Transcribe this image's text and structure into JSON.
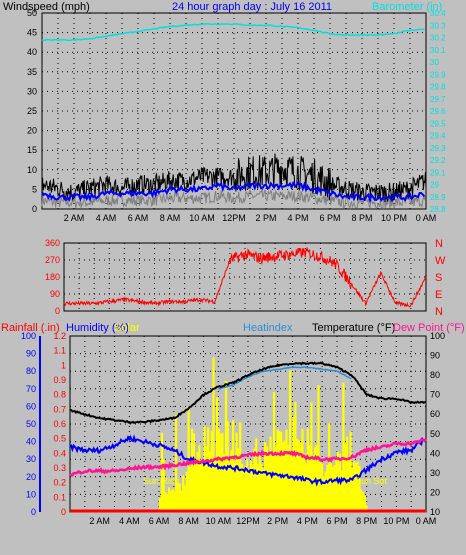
{
  "header": {
    "left_label": "Windspeed (mph)",
    "title": "24 hour graph day : July 16 2011",
    "right_label": "Barometer (in)"
  },
  "colors": {
    "background": "#c0c0c0",
    "plot_area": "#c0c0c0",
    "windspeed": "#000000",
    "wind_avg": "#0000ff",
    "wind_gust_gray": "#808080",
    "barometer": "#00e0e0",
    "direction": "#ff0000",
    "temperature": "#000000",
    "heatindex": "#2a8fd6",
    "humidity": "#0000ff",
    "dewpoint": "#ff1493",
    "solar": "#ffff00",
    "rain": "#ff0000",
    "sun_label": "#ffff00"
  },
  "chart_data": [
    {
      "id": "wind",
      "type": "line",
      "x_tick_labels": [
        "2 AM",
        "4 AM",
        "6 AM",
        "8 AM",
        "10 AM",
        "12PM",
        "2 PM",
        "4 PM",
        "6 PM",
        "8 PM",
        "10 PM",
        "0 AM"
      ],
      "y_left_ticks": [
        "0",
        "5",
        "10",
        "15",
        "20",
        "25",
        "30",
        "35",
        "40",
        "45",
        "50"
      ],
      "y_left_range": [
        0,
        50
      ],
      "y_right_ticks": [
        "28.8",
        "28.9",
        "29",
        "29.1",
        "29.2",
        "29.3",
        "29.4",
        "29.5",
        "29.6",
        "29.7",
        "29.8",
        "29.9",
        "30",
        "30.1",
        "30.2",
        "30.3",
        "30.4"
      ],
      "y_right_range": [
        28.8,
        30.4
      ],
      "x_hours": [
        0,
        1,
        2,
        3,
        4,
        5,
        6,
        7,
        8,
        9,
        10,
        11,
        12,
        13,
        14,
        15,
        16,
        17,
        18,
        19,
        20,
        21,
        22,
        23,
        24
      ],
      "series": [
        {
          "name": "Windspeed (mph)",
          "axis": "left",
          "values": [
            6,
            5,
            4,
            5,
            6,
            5,
            6,
            6,
            7,
            7,
            8,
            8,
            8,
            9,
            9,
            10,
            9,
            8,
            6,
            5,
            4,
            4,
            4,
            5,
            7
          ]
        },
        {
          "name": "",
          "axis": "left",
          "values": [
            4,
            3,
            3,
            3,
            4,
            4,
            4,
            4,
            5,
            5,
            5,
            6,
            5,
            6,
            6,
            6,
            6,
            5,
            4,
            3,
            3,
            3,
            3,
            3,
            4
          ]
        },
        {
          "name": "Barometer (in)",
          "axis": "right",
          "values": [
            30.18,
            30.18,
            30.18,
            30.19,
            30.21,
            30.23,
            30.25,
            30.27,
            30.29,
            30.3,
            30.31,
            30.31,
            30.31,
            30.3,
            30.3,
            30.29,
            30.28,
            30.26,
            30.23,
            30.22,
            30.22,
            30.22,
            30.23,
            30.26,
            30.27
          ]
        }
      ]
    },
    {
      "id": "direction",
      "type": "line",
      "y_left_ticks": [
        "0",
        "90",
        "180",
        "270",
        "360"
      ],
      "y_left_range": [
        0,
        360
      ],
      "y_right_ticks": [
        "N",
        "E",
        "S",
        "W",
        "N"
      ],
      "x_hours": [
        0,
        1,
        2,
        3,
        4,
        5,
        6,
        7,
        8,
        9,
        10,
        11,
        12,
        13,
        14,
        15,
        16,
        17,
        18,
        19,
        20,
        21,
        22,
        23,
        24
      ],
      "series": [
        {
          "name": "Wind direction",
          "values": [
            40,
            40,
            40,
            50,
            60,
            50,
            40,
            50,
            50,
            60,
            50,
            270,
            300,
            280,
            290,
            300,
            310,
            290,
            250,
            150,
            40,
            200,
            40,
            30,
            180
          ]
        }
      ]
    },
    {
      "id": "temp",
      "type": "line",
      "labels": {
        "rain": "Rainfall (.in)",
        "humidity": "Humidity (%)",
        "solar": "Solar",
        "heatindex": "Heatindex",
        "temperature": "Temperature (°F)",
        "dewpoint": "Dew Point (°F)",
        "sunrise": "Sun Rise",
        "sunset": "Sun Set"
      },
      "x_tick_labels": [
        "2 AM",
        "4 AM",
        "6 AM",
        "8 AM",
        "10 AM",
        "12PM",
        "2 PM",
        "4 PM",
        "6 PM",
        "8 PM",
        "10 PM",
        "0 AM"
      ],
      "y_rain_ticks": [
        "0",
        "0.1",
        "0.2",
        "0.3",
        "0.4",
        "0.5",
        "0.6",
        "0.7",
        "0.8",
        "0.9",
        "1",
        "1.1",
        "1.2"
      ],
      "y_rain_range": [
        0,
        1.2
      ],
      "y_humidity_ticks": [
        "0",
        "10",
        "20",
        "30",
        "40",
        "50",
        "60",
        "70",
        "80",
        "90",
        "100"
      ],
      "y_humidity_range": [
        0,
        100
      ],
      "y_temp_ticks": [
        "10",
        "20",
        "30",
        "40",
        "50",
        "60",
        "70",
        "80",
        "90",
        "100"
      ],
      "y_temp_range": [
        10,
        100
      ],
      "x_hours": [
        0,
        1,
        2,
        3,
        4,
        5,
        6,
        7,
        8,
        9,
        10,
        11,
        12,
        13,
        14,
        15,
        16,
        17,
        18,
        19,
        20,
        21,
        22,
        23,
        24
      ],
      "series": [
        {
          "name": "Temperature (°F)",
          "axis": "temp",
          "values": [
            62,
            60,
            58,
            57,
            56,
            56,
            57,
            58,
            63,
            70,
            74,
            76,
            80,
            83,
            85,
            86,
            86,
            86,
            84,
            80,
            70,
            68,
            68,
            66,
            66
          ]
        },
        {
          "name": "Heatindex",
          "axis": "temp",
          "values": [
            null,
            null,
            null,
            null,
            null,
            null,
            null,
            null,
            null,
            null,
            73,
            75,
            79,
            82,
            83,
            84,
            84,
            83,
            82,
            78,
            null,
            null,
            null,
            null,
            null
          ]
        },
        {
          "name": "Humidity (%)",
          "axis": "humidity",
          "values": [
            37,
            35,
            35,
            38,
            42,
            40,
            38,
            35,
            30,
            28,
            26,
            25,
            24,
            22,
            21,
            20,
            18,
            17,
            18,
            18,
            24,
            30,
            34,
            35,
            42
          ]
        },
        {
          "name": "Dew Point (°F)",
          "axis": "temp",
          "values": [
            29,
            31,
            31,
            31,
            32,
            33,
            33,
            34,
            35,
            36,
            37,
            38,
            39,
            40,
            40,
            40,
            38,
            37,
            37,
            38,
            42,
            43,
            45,
            45,
            47
          ]
        },
        {
          "name": "Solar",
          "axis": "rain",
          "values": [
            0,
            0,
            0,
            0,
            0,
            0,
            0.12,
            0.2,
            0.28,
            0.5,
            0.58,
            0.55,
            0.45,
            0.42,
            0.55,
            0.4,
            0.55,
            0.3,
            0.4,
            0.5,
            0,
            0,
            0,
            0,
            0
          ]
        },
        {
          "name": "Rainfall (.in)",
          "axis": "rain",
          "values": [
            0,
            0,
            0,
            0,
            0,
            0,
            0,
            0,
            0,
            0,
            0,
            0,
            0,
            0,
            0,
            0,
            0,
            0,
            0,
            0,
            0,
            0,
            0,
            0,
            0
          ]
        }
      ]
    }
  ]
}
